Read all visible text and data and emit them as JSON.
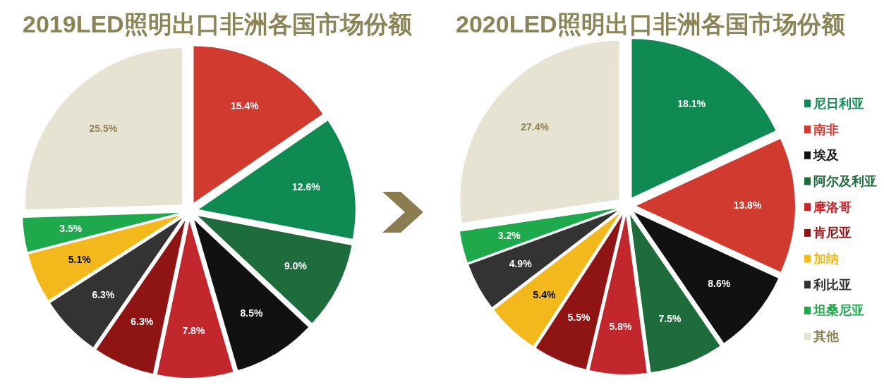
{
  "chart_data": [
    {
      "type": "pie",
      "title": "2019LED照明出口非洲各国市场份额",
      "categories": [
        null,
        null,
        null,
        null,
        null,
        null,
        null,
        null,
        null,
        null
      ],
      "values": [
        15.4,
        12.6,
        9.0,
        8.5,
        7.8,
        6.3,
        6.3,
        5.1,
        3.5,
        25.5
      ],
      "colors": [
        "#d03a2f",
        "#0f8a52",
        "#1e6b3c",
        "#111111",
        "#c1272d",
        "#8f1414",
        "#333333",
        "#f2b81c",
        "#1eaa4c",
        "#e6e3d3"
      ],
      "value_labels": [
        "15.4%",
        "12.6%",
        "9.0%",
        "8.5%",
        "7.8%",
        "6.3%",
        "6.3%",
        "5.1%",
        "3.5%",
        "25.5%"
      ]
    },
    {
      "type": "pie",
      "title": "2020LED照明出口非洲各国市场份额",
      "categories": [
        "尼日利亚",
        "南非",
        "埃及",
        "阿尔及利亚",
        "摩洛哥",
        "肯尼亚",
        "加纳",
        "利比亚",
        "坦桑尼亚",
        "其他"
      ],
      "values": [
        18.1,
        13.8,
        8.6,
        7.5,
        5.8,
        5.5,
        5.4,
        4.9,
        3.2,
        27.4
      ],
      "colors": [
        "#0f8a52",
        "#d03a2f",
        "#111111",
        "#1e6b3c",
        "#c1272d",
        "#8f1414",
        "#f2b81c",
        "#333333",
        "#1eaa4c",
        "#e6e3d3"
      ],
      "value_labels": [
        "18.1%",
        "13.8%",
        "8.6%",
        "7.5%",
        "5.8%",
        "5.5%",
        "5.4%",
        "4.9%",
        "3.2%",
        "27.4%"
      ],
      "legend": "right"
    }
  ]
}
